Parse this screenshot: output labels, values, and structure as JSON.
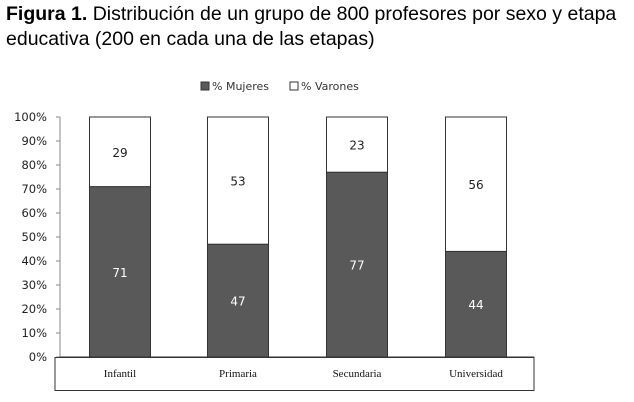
{
  "title": {
    "prefix": "Figura 1.",
    "text": " Distribución de un grupo de 800 profesores por sexo y etapa educativa (200 en cada una de las etapas)"
  },
  "chart_data": {
    "type": "bar",
    "stacked": true,
    "categories": [
      "Infantil",
      "Primaria",
      "Secundaria",
      "Universidad"
    ],
    "series": [
      {
        "name": "% Mujeres",
        "values": [
          71,
          47,
          77,
          44
        ],
        "color": "#595959"
      },
      {
        "name": "% Varones",
        "values": [
          29,
          53,
          23,
          56
        ],
        "color": "#ffffff"
      }
    ],
    "ylim": [
      0,
      100
    ],
    "yticks": [
      "0%",
      "10%",
      "20%",
      "30%",
      "40%",
      "50%",
      "60%",
      "70%",
      "80%",
      "90%",
      "100%"
    ],
    "legend_position": "top",
    "grid": false
  }
}
